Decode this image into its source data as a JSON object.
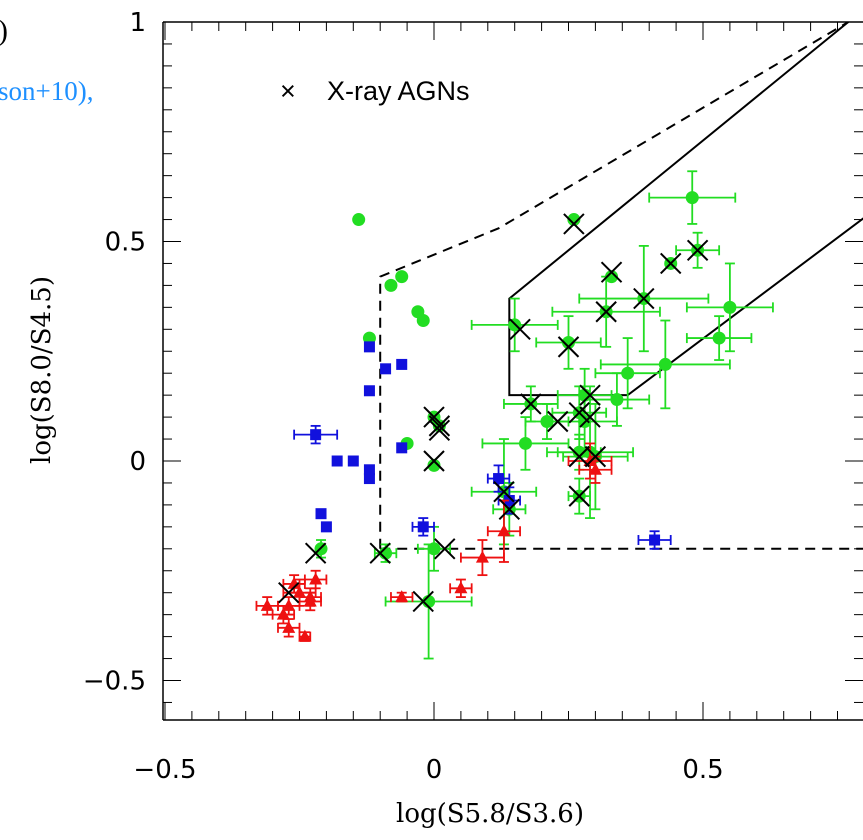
{
  "chart_data": {
    "type": "scatter",
    "xlabel": "log(S5.8/S3.6)",
    "ylabel": "log(S8.0/S4.5)",
    "xlim": [
      -0.62,
      0.98
    ],
    "ylim": [
      -0.6,
      1.0
    ],
    "x_ticks": [
      "−0.5",
      "0",
      "0.5"
    ],
    "y_ticks": [
      "−0.5",
      "0",
      "0.5",
      "1"
    ],
    "legend": {
      "label": "X-ray AGNs",
      "marker": "×",
      "position": "top-left"
    },
    "cropped_text": {
      "left_fragment": ")",
      "blue_fragment": "son+10),"
    },
    "colors": {
      "green": "#22dd22",
      "blue": "#1111dd",
      "red": "#ee1111",
      "black": "#000000"
    },
    "regions": [
      {
        "name": "lacy-wedge",
        "style": "dashed",
        "points": [
          [
            -0.1,
            -0.2
          ],
          [
            -0.1,
            0.42
          ],
          [
            0.12,
            0.53
          ],
          [
            0.77,
            1.0
          ]
        ],
        "bottom_edge": [
          [
            -0.1,
            -0.2
          ],
          [
            0.98,
            -0.2
          ]
        ]
      },
      {
        "name": "stern-wedge",
        "style": "solid",
        "points": [
          [
            0.77,
            1.0
          ],
          [
            0.14,
            0.37
          ],
          [
            0.14,
            0.15
          ],
          [
            0.36,
            0.15
          ],
          [
            0.98,
            0.72
          ]
        ]
      }
    ],
    "series": [
      {
        "color": "green",
        "marker": "circle",
        "points": [
          [
            -0.14,
            0.55,
            0,
            0
          ],
          [
            -0.06,
            0.42,
            0,
            0
          ],
          [
            -0.08,
            0.4,
            0,
            0
          ],
          [
            -0.03,
            0.34,
            0,
            0
          ],
          [
            -0.02,
            0.32,
            0,
            0
          ],
          [
            -0.12,
            0.28,
            0,
            0
          ],
          [
            -0.05,
            0.04,
            0,
            0
          ],
          [
            -0.21,
            -0.2,
            0,
            0.02
          ],
          [
            0.26,
            0.55,
            0,
            0
          ],
          [
            0.48,
            0.6,
            0.08,
            0.06
          ],
          [
            0.33,
            0.42,
            0,
            0
          ],
          [
            0.44,
            0.45,
            0,
            0
          ],
          [
            0.49,
            0.48,
            0.04,
            0.04
          ],
          [
            0.39,
            0.37,
            0.12,
            0.12
          ],
          [
            0.32,
            0.34,
            0.1,
            0.08
          ],
          [
            0.15,
            0.31,
            0.08,
            0.06
          ],
          [
            0.25,
            0.27,
            0.06,
            0.06
          ],
          [
            0.55,
            0.35,
            0.08,
            0.1
          ],
          [
            0.53,
            0.28,
            0.06,
            0.05
          ],
          [
            0.43,
            0.22,
            0.12,
            0.1
          ],
          [
            0.36,
            0.2,
            0.06,
            0.08
          ],
          [
            0.28,
            0.15,
            0.05,
            0.06
          ],
          [
            0.18,
            0.13,
            0.05,
            0.04
          ],
          [
            0.34,
            0.14,
            0.06,
            0.06
          ],
          [
            0.21,
            0.09,
            0.04,
            0.04
          ],
          [
            0.27,
            0.11,
            0.05,
            0.06
          ],
          [
            0.28,
            0.09,
            0.06,
            0.07
          ],
          [
            0.17,
            0.04,
            0.08,
            0.06
          ],
          [
            0.29,
            0.02,
            0.08,
            0.15
          ],
          [
            0.3,
            0.01,
            0.06,
            0.12
          ],
          [
            0.27,
            0.02,
            0.04,
            0.04
          ],
          [
            0.27,
            -0.08,
            0.02,
            0.04
          ],
          [
            0.13,
            -0.07,
            0.06,
            0.12
          ],
          [
            0.14,
            -0.11,
            0.03,
            0.06
          ],
          [
            0.0,
            0.1,
            0,
            0
          ],
          [
            0.01,
            0.08,
            0,
            0
          ],
          [
            0.0,
            -0.01,
            0,
            0
          ],
          [
            0.0,
            -0.2,
            0.03,
            0.05
          ],
          [
            -0.01,
            -0.32,
            0.08,
            0.13
          ],
          [
            -0.09,
            -0.21,
            0.02,
            0.02
          ]
        ]
      },
      {
        "color": "blue",
        "marker": "square",
        "points": [
          [
            -0.12,
            0.26,
            0,
            0
          ],
          [
            -0.06,
            0.22,
            0,
            0
          ],
          [
            -0.09,
            0.21,
            0,
            0
          ],
          [
            -0.12,
            0.16,
            0,
            0
          ],
          [
            -0.22,
            0.06,
            0.04,
            0.02
          ],
          [
            -0.06,
            0.03,
            0,
            0
          ],
          [
            -0.18,
            0.0,
            0,
            0
          ],
          [
            -0.15,
            0.0,
            0,
            0
          ],
          [
            -0.12,
            -0.02,
            0,
            0
          ],
          [
            -0.12,
            -0.04,
            0,
            0
          ],
          [
            -0.21,
            -0.12,
            0,
            0
          ],
          [
            -0.2,
            -0.15,
            0,
            0
          ],
          [
            0.14,
            -0.09,
            0.02,
            0.03
          ],
          [
            0.12,
            -0.04,
            0.02,
            0.03
          ],
          [
            -0.02,
            -0.15,
            0.02,
            0.02
          ],
          [
            0.41,
            -0.18,
            0.03,
            0.02
          ]
        ]
      },
      {
        "color": "red",
        "marker": "triangle",
        "points": [
          [
            -0.23,
            -0.32,
            0.02,
            0.02
          ],
          [
            -0.25,
            -0.3,
            0.03,
            0.03
          ],
          [
            -0.26,
            -0.28,
            0.02,
            0.02
          ],
          [
            -0.22,
            -0.27,
            0.02,
            0.02
          ],
          [
            -0.23,
            -0.31,
            0.02,
            0.02
          ],
          [
            -0.27,
            -0.33,
            0.02,
            0.02
          ],
          [
            -0.28,
            -0.35,
            0.02,
            0.02
          ],
          [
            -0.27,
            -0.38,
            0.02,
            0.02
          ],
          [
            -0.24,
            -0.4,
            0.01,
            0.01
          ],
          [
            -0.31,
            -0.33,
            0.02,
            0.02
          ],
          [
            -0.06,
            -0.31,
            0.02,
            0.01
          ],
          [
            0.05,
            -0.29,
            0.02,
            0.02
          ],
          [
            0.09,
            -0.22,
            0.04,
            0.04
          ],
          [
            0.13,
            -0.16,
            0.03,
            0.07
          ],
          [
            0.29,
            0.0,
            0.04,
            0.04
          ],
          [
            0.3,
            -0.02,
            0.03,
            0.03
          ]
        ]
      },
      {
        "color": "black",
        "marker": "x",
        "points": [
          [
            -0.27,
            -0.3,
            0,
            0
          ],
          [
            -0.22,
            -0.21,
            0,
            0
          ],
          [
            -0.1,
            -0.21,
            0,
            0
          ],
          [
            -0.02,
            -0.32,
            0,
            0
          ],
          [
            0.02,
            -0.2,
            0,
            0
          ],
          [
            0.0,
            0.1,
            0,
            0
          ],
          [
            0.01,
            0.08,
            0,
            0
          ],
          [
            0.01,
            0.07,
            0,
            0
          ],
          [
            0.0,
            0.0,
            0,
            0
          ],
          [
            0.13,
            -0.07,
            0,
            0
          ],
          [
            0.14,
            -0.11,
            0,
            0
          ],
          [
            0.26,
            0.54,
            0,
            0
          ],
          [
            0.33,
            0.43,
            0,
            0
          ],
          [
            0.44,
            0.45,
            0,
            0
          ],
          [
            0.49,
            0.48,
            0,
            0
          ],
          [
            0.39,
            0.37,
            0,
            0
          ],
          [
            0.32,
            0.34,
            0,
            0
          ],
          [
            0.16,
            0.3,
            0,
            0
          ],
          [
            0.25,
            0.26,
            0,
            0
          ],
          [
            0.18,
            0.13,
            0,
            0
          ],
          [
            0.23,
            0.09,
            0,
            0
          ],
          [
            0.29,
            0.15,
            0,
            0
          ],
          [
            0.27,
            0.11,
            0,
            0
          ],
          [
            0.29,
            0.1,
            0,
            0
          ],
          [
            0.27,
            0.01,
            0,
            0
          ],
          [
            0.3,
            0.01,
            0,
            0
          ],
          [
            0.27,
            -0.08,
            0,
            0
          ]
        ]
      }
    ]
  }
}
